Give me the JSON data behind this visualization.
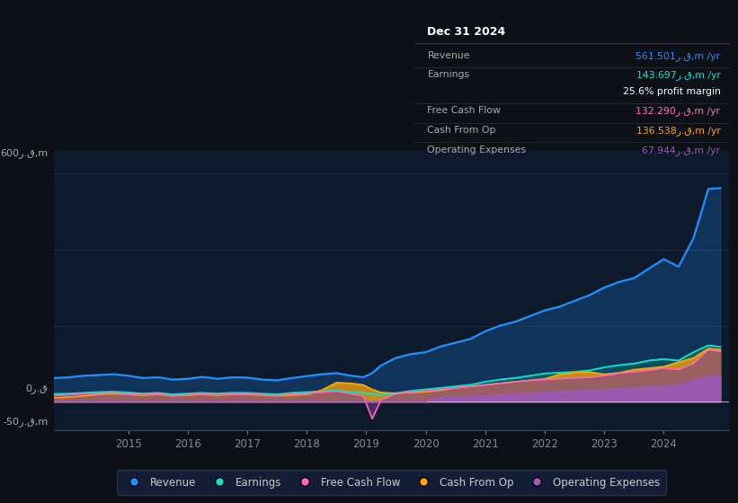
{
  "bg_color": "#0d1117",
  "plot_bg_color": "#0d1a2b",
  "grid_color": "#1e3050",
  "title_text": "Dec 31 2024",
  "ylabel_top": "600ر.ق,m",
  "ylabel_zero": "0ر.ق",
  "ylabel_bottom": "-50ر.ق,m",
  "ylim": [
    -75,
    660
  ],
  "yticks": [
    -50,
    0,
    600
  ],
  "legend": [
    {
      "label": "Revenue",
      "color": "#1e90ff"
    },
    {
      "label": "Earnings",
      "color": "#00e5cc"
    },
    {
      "label": "Free Cash Flow",
      "color": "#ff69b4"
    },
    {
      "label": "Cash From Op",
      "color": "#ffa500"
    },
    {
      "label": "Operating Expenses",
      "color": "#9b59b6"
    }
  ],
  "x_years": [
    2013.75,
    2014.0,
    2014.25,
    2014.5,
    2014.75,
    2015.0,
    2015.25,
    2015.5,
    2015.75,
    2016.0,
    2016.25,
    2016.5,
    2016.75,
    2017.0,
    2017.25,
    2017.5,
    2017.75,
    2018.0,
    2018.25,
    2018.5,
    2018.75,
    2018.95,
    2019.1,
    2019.25,
    2019.5,
    2019.75,
    2020.0,
    2020.25,
    2020.5,
    2020.75,
    2021.0,
    2021.25,
    2021.5,
    2021.75,
    2022.0,
    2022.25,
    2022.5,
    2022.75,
    2023.0,
    2023.25,
    2023.5,
    2023.75,
    2024.0,
    2024.25,
    2024.5,
    2024.75,
    2024.95
  ],
  "revenue": [
    62,
    64,
    68,
    70,
    72,
    68,
    62,
    64,
    58,
    60,
    65,
    60,
    64,
    63,
    58,
    56,
    62,
    67,
    72,
    75,
    68,
    64,
    75,
    95,
    115,
    125,
    130,
    145,
    155,
    165,
    185,
    200,
    210,
    225,
    240,
    250,
    265,
    280,
    300,
    315,
    325,
    350,
    375,
    355,
    430,
    560,
    562
  ],
  "earnings": [
    20,
    21,
    23,
    25,
    26,
    24,
    21,
    23,
    19,
    21,
    23,
    21,
    23,
    23,
    21,
    19,
    23,
    25,
    27,
    29,
    25,
    23,
    20,
    18,
    22,
    28,
    32,
    36,
    40,
    44,
    52,
    58,
    62,
    68,
    74,
    76,
    78,
    82,
    90,
    96,
    100,
    108,
    112,
    108,
    130,
    148,
    144
  ],
  "free_cash_flow": [
    16,
    18,
    20,
    22,
    23,
    21,
    18,
    20,
    16,
    18,
    20,
    18,
    20,
    20,
    18,
    16,
    20,
    22,
    24,
    27,
    20,
    15,
    -45,
    5,
    20,
    26,
    28,
    32,
    36,
    40,
    44,
    48,
    52,
    56,
    58,
    60,
    62,
    64,
    68,
    74,
    78,
    82,
    88,
    84,
    100,
    136,
    132
  ],
  "cash_from_op": [
    10,
    12,
    15,
    19,
    21,
    19,
    17,
    19,
    15,
    17,
    19,
    17,
    19,
    19,
    17,
    15,
    17,
    19,
    30,
    50,
    48,
    44,
    32,
    24,
    22,
    24,
    26,
    30,
    36,
    40,
    44,
    48,
    52,
    56,
    60,
    72,
    76,
    78,
    72,
    76,
    84,
    88,
    92,
    104,
    115,
    140,
    137
  ],
  "op_expenses": [
    0,
    0,
    0,
    0,
    0,
    0,
    0,
    0,
    0,
    0,
    0,
    0,
    0,
    0,
    0,
    0,
    0,
    0,
    0,
    0,
    0,
    0,
    0,
    0,
    0,
    0,
    0,
    10,
    12,
    14,
    16,
    18,
    20,
    22,
    24,
    26,
    28,
    30,
    32,
    34,
    36,
    38,
    40,
    44,
    56,
    66,
    68
  ],
  "xticks": [
    2015,
    2016,
    2017,
    2018,
    2019,
    2020,
    2021,
    2022,
    2023,
    2024
  ],
  "xlim": [
    2013.75,
    2025.1
  ],
  "table_rows": [
    {
      "label": "Revenue",
      "value": "561.501ر.ق,m /yr",
      "label_color": "#aaaaaa",
      "value_color": "#1e90ff",
      "divider": true
    },
    {
      "label": "Earnings",
      "value": "143.697ر.ق,m /yr",
      "label_color": "#aaaaaa",
      "value_color": "#00e5cc",
      "divider": false
    },
    {
      "label": "",
      "value": "25.6% profit margin",
      "label_color": "#aaaaaa",
      "value_color": "#ffffff",
      "divider": true
    },
    {
      "label": "Free Cash Flow",
      "value": "132.290ر.ق,m /yr",
      "label_color": "#aaaaaa",
      "value_color": "#ff69b4",
      "divider": true
    },
    {
      "label": "Cash From Op",
      "value": "136.538ر.ق,m /yr",
      "label_color": "#aaaaaa",
      "value_color": "#ffa500",
      "divider": true
    },
    {
      "label": "Operating Expenses",
      "value": "67.944ر.ق,m /yr",
      "label_color": "#aaaaaa",
      "value_color": "#9b59b6",
      "divider": false
    }
  ]
}
